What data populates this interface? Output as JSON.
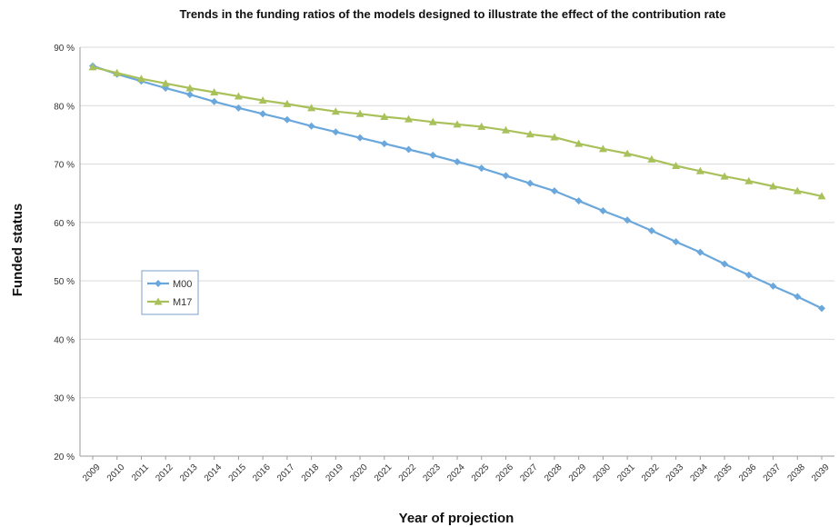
{
  "chart_data": {
    "type": "line",
    "title": "Trends in the funding ratios of the models designed to illustrate the effect of the contribution rate",
    "xlabel": "Year of projection",
    "ylabel": "Funded status",
    "categories": [
      "2009",
      "2010",
      "2011",
      "2012",
      "2013",
      "2014",
      "2015",
      "2016",
      "2017",
      "2018",
      "2019",
      "2020",
      "2021",
      "2022",
      "2023",
      "2024",
      "2025",
      "2026",
      "2027",
      "2028",
      "2029",
      "2030",
      "2031",
      "2032",
      "2033",
      "2034",
      "2035",
      "2036",
      "2037",
      "2038",
      "2039"
    ],
    "y_ticks": [
      "20 %",
      "30 %",
      "40 %",
      "50 %",
      "60 %",
      "70 %",
      "80 %",
      "90 %"
    ],
    "ylim": [
      20,
      90
    ],
    "grid": "horizontal",
    "legend_position": "left",
    "series": [
      {
        "name": "M00",
        "color": "#6aa7dc",
        "marker": "diamond",
        "values": [
          86.8,
          85.4,
          84.2,
          83.0,
          81.9,
          80.7,
          79.6,
          78.6,
          77.6,
          76.5,
          75.5,
          74.5,
          73.5,
          72.5,
          71.5,
          70.4,
          69.3,
          68.0,
          66.7,
          65.4,
          63.7,
          62.0,
          60.4,
          58.6,
          56.7,
          54.9,
          52.9,
          51.0,
          49.1,
          47.3,
          45.3
        ]
      },
      {
        "name": "M17",
        "color": "#a9c15a",
        "marker": "triangle",
        "values": [
          86.6,
          85.6,
          84.6,
          83.8,
          83.0,
          82.3,
          81.6,
          80.9,
          80.3,
          79.6,
          79.0,
          78.6,
          78.1,
          77.7,
          77.2,
          76.8,
          76.4,
          75.8,
          75.1,
          74.6,
          73.5,
          72.6,
          71.8,
          70.8,
          69.7,
          68.8,
          67.9,
          67.1,
          66.2,
          65.4,
          64.5
        ]
      }
    ]
  }
}
